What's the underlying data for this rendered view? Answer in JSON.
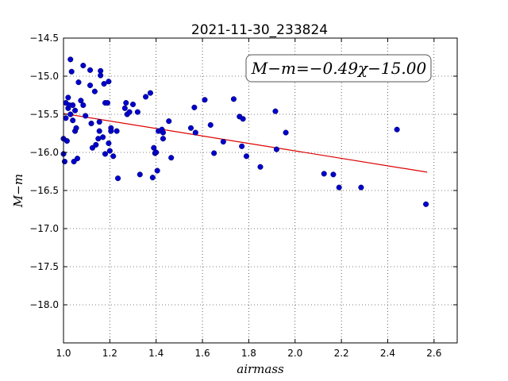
{
  "chart_data": {
    "type": "scatter",
    "title": "2021-11-30_233824",
    "xlabel": "airmass",
    "ylabel": "M−m",
    "xlim": [
      1.0,
      2.7
    ],
    "ylim": [
      -18.5,
      -14.5
    ],
    "y_inverted": true,
    "grid": true,
    "x_ticks": [
      "1.0",
      "1.2",
      "1.4",
      "1.6",
      "1.8",
      "2.0",
      "2.2",
      "2.4",
      "2.6"
    ],
    "y_ticks": [
      "−14.5",
      "−15.0",
      "−15.5",
      "−16.0",
      "−16.5",
      "−17.0",
      "−17.5",
      "−18.0"
    ],
    "annotation": "M−m=−0.49χ−15.00",
    "fit": {
      "slope": -0.49,
      "intercept": -15.0,
      "x_range": [
        1.0,
        2.57
      ],
      "color": "#dd0000"
    },
    "point_color": "#0000cc",
    "points": [
      {
        "x": 1.0,
        "y": -15.82
      },
      {
        "x": 1.0,
        "y": -16.02
      },
      {
        "x": 1.005,
        "y": -16.12
      },
      {
        "x": 1.01,
        "y": -15.35
      },
      {
        "x": 1.01,
        "y": -15.55
      },
      {
        "x": 1.015,
        "y": -15.85
      },
      {
        "x": 1.02,
        "y": -15.28
      },
      {
        "x": 1.02,
        "y": -15.42
      },
      {
        "x": 1.025,
        "y": -15.38
      },
      {
        "x": 1.03,
        "y": -14.78
      },
      {
        "x": 1.03,
        "y": -15.5
      },
      {
        "x": 1.035,
        "y": -14.94
      },
      {
        "x": 1.04,
        "y": -15.38
      },
      {
        "x": 1.04,
        "y": -15.58
      },
      {
        "x": 1.045,
        "y": -16.12
      },
      {
        "x": 1.05,
        "y": -15.45
      },
      {
        "x": 1.05,
        "y": -15.72
      },
      {
        "x": 1.055,
        "y": -15.68
      },
      {
        "x": 1.06,
        "y": -16.08
      },
      {
        "x": 1.065,
        "y": -15.08
      },
      {
        "x": 1.075,
        "y": -15.32
      },
      {
        "x": 1.085,
        "y": -14.86
      },
      {
        "x": 1.085,
        "y": -15.38
      },
      {
        "x": 1.095,
        "y": -15.52
      },
      {
        "x": 1.115,
        "y": -14.92
      },
      {
        "x": 1.115,
        "y": -15.12
      },
      {
        "x": 1.12,
        "y": -15.62
      },
      {
        "x": 1.125,
        "y": -15.94
      },
      {
        "x": 1.135,
        "y": -15.2
      },
      {
        "x": 1.14,
        "y": -15.9
      },
      {
        "x": 1.15,
        "y": -15.82
      },
      {
        "x": 1.155,
        "y": -15.6
      },
      {
        "x": 1.155,
        "y": -15.72
      },
      {
        "x": 1.16,
        "y": -14.93
      },
      {
        "x": 1.16,
        "y": -14.99
      },
      {
        "x": 1.17,
        "y": -15.8
      },
      {
        "x": 1.175,
        "y": -15.1
      },
      {
        "x": 1.18,
        "y": -15.35
      },
      {
        "x": 1.18,
        "y": -16.02
      },
      {
        "x": 1.19,
        "y": -15.35
      },
      {
        "x": 1.195,
        "y": -15.07
      },
      {
        "x": 1.195,
        "y": -15.88
      },
      {
        "x": 1.2,
        "y": -15.98
      },
      {
        "x": 1.205,
        "y": -15.68
      },
      {
        "x": 1.205,
        "y": -15.72
      },
      {
        "x": 1.215,
        "y": -16.05
      },
      {
        "x": 1.23,
        "y": -15.72
      },
      {
        "x": 1.235,
        "y": -16.34
      },
      {
        "x": 1.265,
        "y": -15.42
      },
      {
        "x": 1.27,
        "y": -15.35
      },
      {
        "x": 1.275,
        "y": -15.5
      },
      {
        "x": 1.285,
        "y": -15.47
      },
      {
        "x": 1.3,
        "y": -15.37
      },
      {
        "x": 1.32,
        "y": -15.47
      },
      {
        "x": 1.33,
        "y": -16.29
      },
      {
        "x": 1.355,
        "y": -15.27
      },
      {
        "x": 1.375,
        "y": -15.22
      },
      {
        "x": 1.385,
        "y": -16.33
      },
      {
        "x": 1.39,
        "y": -15.94
      },
      {
        "x": 1.395,
        "y": -16.01
      },
      {
        "x": 1.4,
        "y": -16.0
      },
      {
        "x": 1.405,
        "y": -16.24
      },
      {
        "x": 1.41,
        "y": -15.72
      },
      {
        "x": 1.425,
        "y": -15.7
      },
      {
        "x": 1.43,
        "y": -15.74
      },
      {
        "x": 1.43,
        "y": -15.82
      },
      {
        "x": 1.455,
        "y": -15.59
      },
      {
        "x": 1.465,
        "y": -16.07
      },
      {
        "x": 1.55,
        "y": -15.68
      },
      {
        "x": 1.565,
        "y": -15.41
      },
      {
        "x": 1.57,
        "y": -15.74
      },
      {
        "x": 1.61,
        "y": -15.31
      },
      {
        "x": 1.635,
        "y": -15.64
      },
      {
        "x": 1.65,
        "y": -16.01
      },
      {
        "x": 1.69,
        "y": -15.86
      },
      {
        "x": 1.735,
        "y": -15.3
      },
      {
        "x": 1.76,
        "y": -15.53
      },
      {
        "x": 1.77,
        "y": -15.92
      },
      {
        "x": 1.775,
        "y": -15.56
      },
      {
        "x": 1.79,
        "y": -16.05
      },
      {
        "x": 1.85,
        "y": -16.19
      },
      {
        "x": 1.915,
        "y": -15.46
      },
      {
        "x": 1.92,
        "y": -15.96
      },
      {
        "x": 1.96,
        "y": -15.74
      },
      {
        "x": 2.125,
        "y": -16.28
      },
      {
        "x": 2.165,
        "y": -16.29
      },
      {
        "x": 2.19,
        "y": -16.46
      },
      {
        "x": 2.285,
        "y": -16.46
      },
      {
        "x": 2.44,
        "y": -15.7
      },
      {
        "x": 2.565,
        "y": -16.68
      }
    ]
  }
}
